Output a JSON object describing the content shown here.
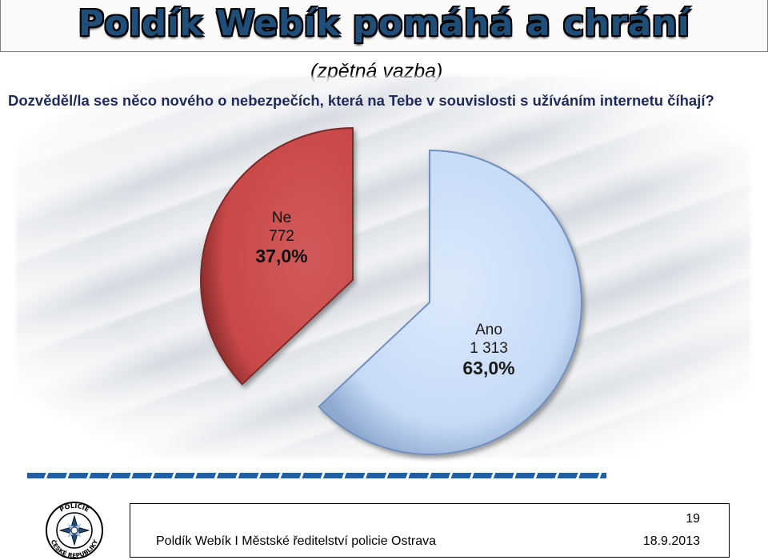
{
  "header": {
    "title": "Poldík Webík pomáhá a chrání",
    "subtitle": "(zpětná vazba)"
  },
  "chart_data": {
    "type": "pie",
    "title": "Dozvěděl/la ses něco nového o nebezpečích, která na Tebe v souvislosti s užíváním internetu číhají?",
    "slices": [
      {
        "label": "Ano",
        "value": 1313,
        "percent_label": "63,0%",
        "value_label": "1 313",
        "color": "#c6dbf7"
      },
      {
        "label": "Ne",
        "value": 772,
        "percent_label": "37,0%",
        "value_label": "772",
        "color": "#cc4c4c"
      }
    ],
    "exploded": true
  },
  "logo": {
    "text_top": "POLICIE",
    "text_bottom": "ČESKÉ REPUBLIKY"
  },
  "footer": {
    "page_number": "19",
    "organization": "Poldík Webík I Městské ředitelství policie Ostrava",
    "date": "18.9.2013"
  }
}
